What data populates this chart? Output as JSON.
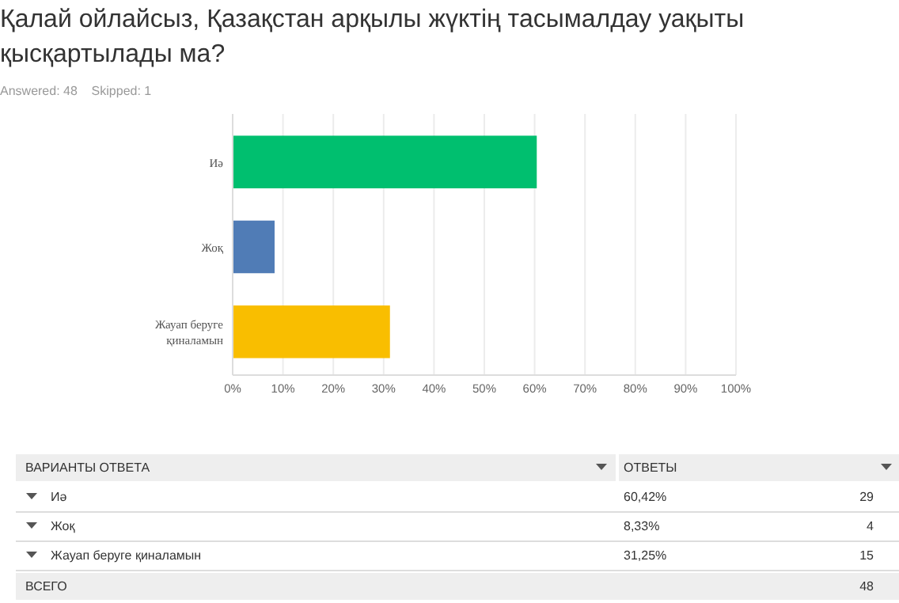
{
  "chart_data": {
    "type": "bar",
    "orientation": "horizontal",
    "title": "Қалай ойлайсыз, Қазақстан арқылы жүктің тасымалдау уақыты қысқартылады ма?",
    "subtitle": "Answered: 48    Skipped: 1",
    "categories": [
      "Иә",
      "Жоқ",
      "Жауап беруге қиналамын"
    ],
    "values": [
      60.42,
      8.33,
      31.25
    ],
    "colors": [
      "#00bf6f",
      "#507cb6",
      "#f9be00"
    ],
    "xlim": [
      0,
      100
    ],
    "xticks": [
      {
        "value": 0,
        "label": "0%"
      },
      {
        "value": 10,
        "label": "10%"
      },
      {
        "value": 20,
        "label": "20%"
      },
      {
        "value": 30,
        "label": "30%"
      },
      {
        "value": 40,
        "label": "40%"
      },
      {
        "value": 50,
        "label": "50%"
      },
      {
        "value": 60,
        "label": "60%"
      },
      {
        "value": 70,
        "label": "70%"
      },
      {
        "value": 80,
        "label": "80%"
      },
      {
        "value": 90,
        "label": "90%"
      },
      {
        "value": 100,
        "label": "100%"
      }
    ],
    "grid": "x",
    "annotations": [
      "ВАРИАНТЫ ОТВЕТА",
      "ОТВЕТЫ",
      "60,42%",
      "29",
      "8,33%",
      "4",
      "31,25%",
      "15",
      "ВСЕГО",
      "48"
    ]
  }
}
